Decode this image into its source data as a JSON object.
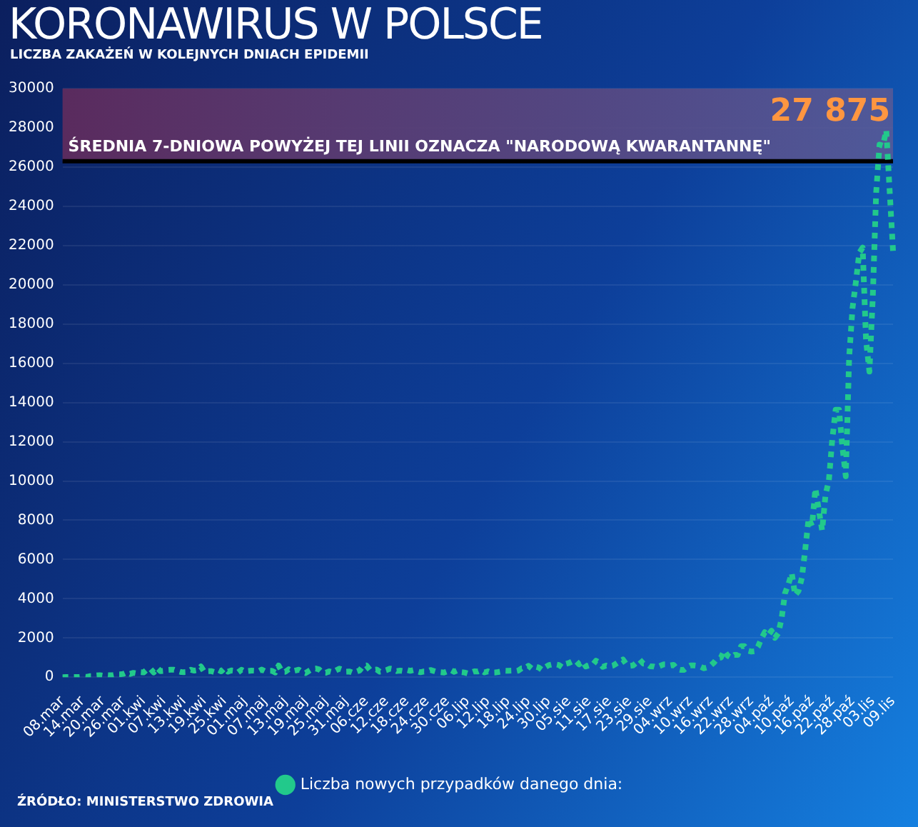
{
  "chart_data": {
    "type": "line",
    "title": "KORONAWIRUS W POLSCE",
    "subtitle": "LICZBA ZAKAŻEŃ W KOLEJNYCH DNIACH EPIDEMII",
    "categories": [
      "08.mar",
      null,
      null,
      null,
      null,
      null,
      "14.mar",
      null,
      null,
      null,
      null,
      null,
      "20.mar",
      null,
      null,
      null,
      null,
      null,
      "26.mar",
      null,
      null,
      null,
      null,
      null,
      "01.kwi",
      null,
      null,
      null,
      null,
      null,
      "07.kwi",
      null,
      null,
      null,
      null,
      null,
      "13.kwi",
      null,
      null,
      null,
      null,
      null,
      "19.kwi",
      null,
      null,
      null,
      null,
      null,
      "25.kwi",
      null,
      null,
      null,
      null,
      null,
      "01.maj",
      null,
      null,
      null,
      null,
      null,
      "07.maj",
      null,
      null,
      null,
      null,
      null,
      "13.maj",
      null,
      null,
      null,
      null,
      null,
      "19.maj",
      null,
      null,
      null,
      null,
      null,
      "25.maj",
      null,
      null,
      null,
      null,
      null,
      "31.maj",
      null,
      null,
      null,
      null,
      null,
      "06.cze",
      null,
      null,
      null,
      null,
      null,
      "12.cze",
      null,
      null,
      null,
      null,
      null,
      "18.cze",
      null,
      null,
      null,
      null,
      null,
      "24.cze",
      null,
      null,
      null,
      null,
      null,
      "30.cze",
      null,
      null,
      null,
      null,
      null,
      "06.lip",
      null,
      null,
      null,
      null,
      null,
      "12.lip",
      null,
      null,
      null,
      null,
      null,
      "18.lip",
      null,
      null,
      null,
      null,
      null,
      "24.lip",
      null,
      null,
      null,
      null,
      null,
      "30.lip",
      null,
      null,
      null,
      null,
      null,
      "05.sie",
      null,
      null,
      null,
      null,
      null,
      "11.sie",
      null,
      null,
      null,
      null,
      null,
      "17.sie",
      null,
      null,
      null,
      null,
      null,
      "23.sie",
      null,
      null,
      null,
      null,
      null,
      "29.sie",
      null,
      null,
      null,
      null,
      null,
      "04.wrz",
      null,
      null,
      null,
      null,
      null,
      "10.wrz",
      null,
      null,
      null,
      null,
      null,
      "16.wrz",
      null,
      null,
      null,
      null,
      null,
      "22.wrz",
      null,
      null,
      null,
      null,
      null,
      "28.wrz",
      null,
      null,
      null,
      null,
      null,
      "04.paź",
      null,
      null,
      null,
      null,
      null,
      "10.paź",
      null,
      null,
      null,
      null,
      null,
      "16.paź",
      null,
      null,
      null,
      null,
      null,
      "22.paź",
      null,
      null,
      null,
      null,
      null,
      "28.paź",
      null,
      null,
      null,
      null,
      null,
      "03.lis",
      null,
      null,
      null,
      null,
      null,
      "09.lis"
    ],
    "series": [
      {
        "name": "Liczba nowych przypadków danego dnia:",
        "color": "#22c98b",
        "values": [
          5,
          6,
          6,
          5,
          9,
          20,
          36,
          14,
          52,
          52,
          87,
          104,
          76,
          111,
          98,
          115,
          152,
          150,
          170,
          249,
          168,
          224,
          193,
          256,
          243,
          392,
          437,
          244,
          475,
          311,
          325,
          370,
          380,
          380,
          318,
          268,
          260,
          268,
          380,
          336,
          363,
          545,
          263,
          306,
          313,
          263,
          381,
          300,
          460,
          285,
          344,
          322,
          251,
          380,
          285,
          322,
          340,
          330,
          300,
          390,
          307,
          331,
          330,
          240,
          595,
          285,
          278,
          405,
          306,
          346,
          384,
          268,
          212,
          324,
          424,
          443,
          395,
          240,
          228,
          300,
          255,
          349,
          441,
          381,
          286,
          292,
          222,
          283,
          342,
          576,
          599,
          380,
          375,
          395,
          282,
          311,
          364,
          440,
          407,
          314,
          340,
          308,
          371,
          326,
          363,
          301,
          253,
          292,
          293,
          366,
          319,
          270,
          254,
          238,
          300,
          371,
          276,
          353,
          262,
          243,
          193,
          239,
          299,
          290,
          358,
          246,
          299,
          234,
          240,
          265,
          296,
          334,
          327,
          334,
          302,
          337,
          459,
          458,
          584,
          443,
          545,
          501,
          374,
          512,
          615,
          657,
          658,
          626,
          512,
          680,
          726,
          809,
          843,
          658,
          809,
          548,
          599,
          624,
          843,
          744,
          532,
          594,
          548,
          587,
          692,
          811,
          903,
          661,
          581,
          601,
          748,
          887,
          695,
          691,
          558,
          550,
          501,
          575,
          655,
          654,
          597,
          632,
          416,
          376,
          372,
          510,
          605,
          601,
          578,
          531,
          456,
          501,
          600,
          757,
          974,
          1002,
          1350,
          1100,
          1000,
          1136,
          1136,
          1587,
          1584,
          1350,
          1306,
          1326,
          1552,
          1967,
          2293,
          2135,
          2367,
          2006,
          2236,
          3003,
          4280,
          4739,
          5300,
          4178,
          4394,
          5068,
          6526,
          8099,
          7705,
          9622,
          8536,
          7482,
          9291,
          10040,
          12107,
          13632,
          13628,
          11742,
          10241,
          16300,
          18820,
          20156,
          21629,
          21897,
          17171,
          15578,
          19364,
          24692,
          27143,
          27086,
          27875,
          24785,
          21713
        ]
      }
    ],
    "ylim": [
      0,
      30000
    ],
    "yticks": [
      0,
      2000,
      4000,
      6000,
      8000,
      10000,
      12000,
      14000,
      16000,
      18000,
      20000,
      22000,
      24000,
      26000,
      28000,
      30000
    ],
    "grid": "y",
    "legend": "bottom",
    "marker": "none",
    "line_style": "dotted",
    "bands": [
      {
        "axis": "y",
        "from": 26300,
        "to": 30000,
        "label": "ŚREDNIA 7-DNIOWA POWYŻEJ TEJ LINII OZNACZA \"NARODOWĄ KWARANTANNĘ\"",
        "color": "#5a2b5e"
      }
    ],
    "ref_lines": [
      {
        "axis": "y",
        "value": 26300,
        "color": "#000000"
      }
    ],
    "annotations": [
      "27 875",
      "ŹRÓDŁO: MINISTERSTWO ZDROWIA"
    ]
  }
}
